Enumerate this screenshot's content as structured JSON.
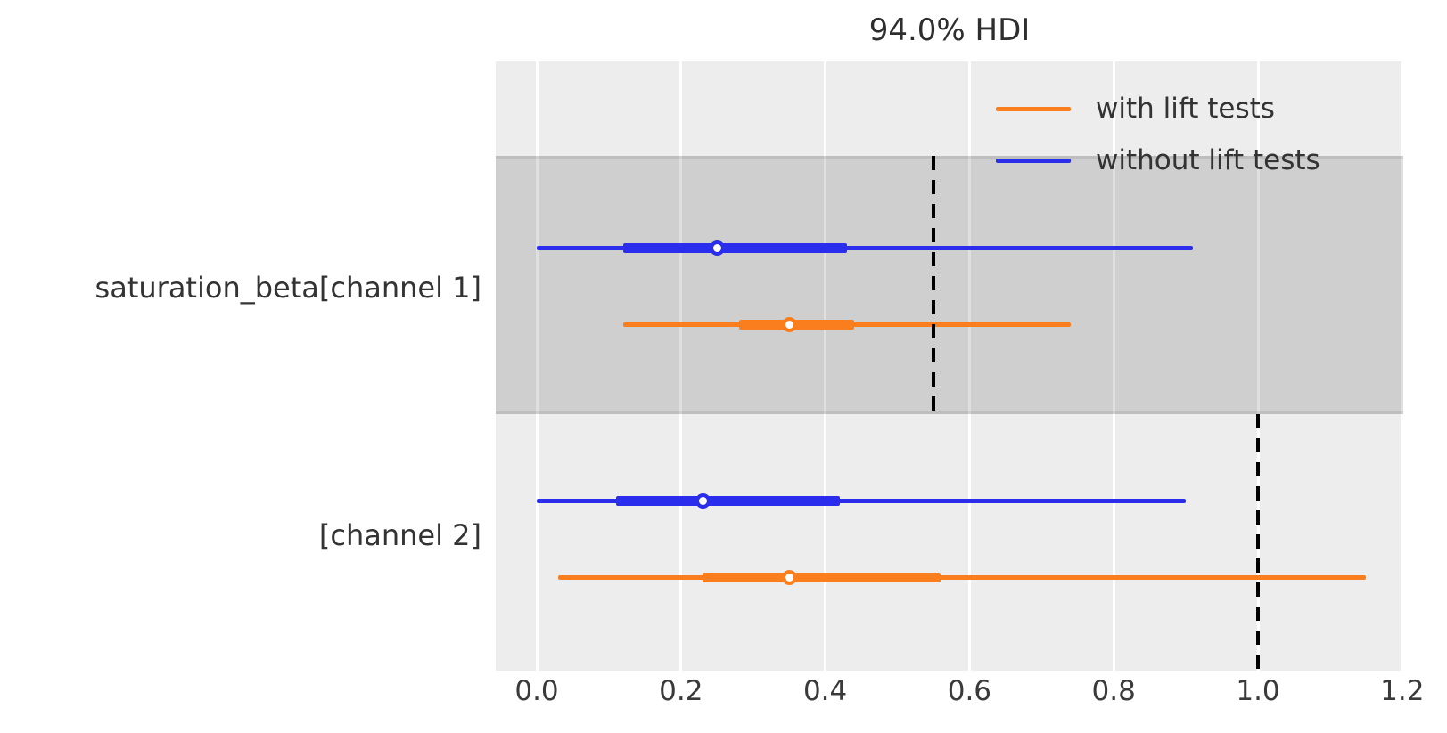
{
  "title": "94.0% HDI",
  "colors": {
    "with_lift_tests": "#fa7e1e",
    "without_lift_tests": "#2a2eec",
    "axes_background": "#ededed",
    "highlight_band": "rgba(0,0,0,0.125)",
    "gridline": "#ffffff",
    "reference_line": "#000000",
    "text": "#333333"
  },
  "legend": {
    "items": [
      {
        "label": "with lift tests",
        "color": "#fa7e1e"
      },
      {
        "label": "without lift tests",
        "color": "#2a2eec"
      }
    ]
  },
  "y_axis_labels": [
    "saturation_beta[channel 1]",
    "[channel 2]"
  ],
  "x_axis": {
    "ticks": [
      "0.0",
      "0.2",
      "0.4",
      "0.6",
      "0.8",
      "1.0",
      "1.2"
    ],
    "values": [
      0.0,
      0.2,
      0.4,
      0.6,
      0.8,
      1.0,
      1.2
    ]
  },
  "chart_data": {
    "type": "scatter",
    "subtype": "forest_interval_hdi",
    "title": "94.0% HDI",
    "hdi_probability": 0.94,
    "xlim": [
      -0.06,
      1.2
    ],
    "grid": "vertical white gridlines at each x tick",
    "legend_position": "upper right",
    "groups": [
      {
        "label": "saturation_beta[channel 1]",
        "highlighted": true,
        "reference_value": 0.55,
        "intervals": [
          {
            "series": "without lift tests",
            "color": "#2a2eec",
            "hdi": [
              0.0,
              0.91
            ],
            "quartile_range": [
              0.12,
              0.43
            ],
            "median": 0.25
          },
          {
            "series": "with lift tests",
            "color": "#fa7e1e",
            "hdi": [
              0.12,
              0.74
            ],
            "quartile_range": [
              0.28,
              0.44
            ],
            "median": 0.35
          }
        ]
      },
      {
        "label": "[channel 2]",
        "highlighted": false,
        "reference_value": 1.0,
        "intervals": [
          {
            "series": "without lift tests",
            "color": "#2a2eec",
            "hdi": [
              0.0,
              0.9
            ],
            "quartile_range": [
              0.11,
              0.42
            ],
            "median": 0.23
          },
          {
            "series": "with lift tests",
            "color": "#fa7e1e",
            "hdi": [
              0.03,
              1.15
            ],
            "quartile_range": [
              0.23,
              0.56
            ],
            "median": 0.35
          }
        ]
      }
    ]
  }
}
